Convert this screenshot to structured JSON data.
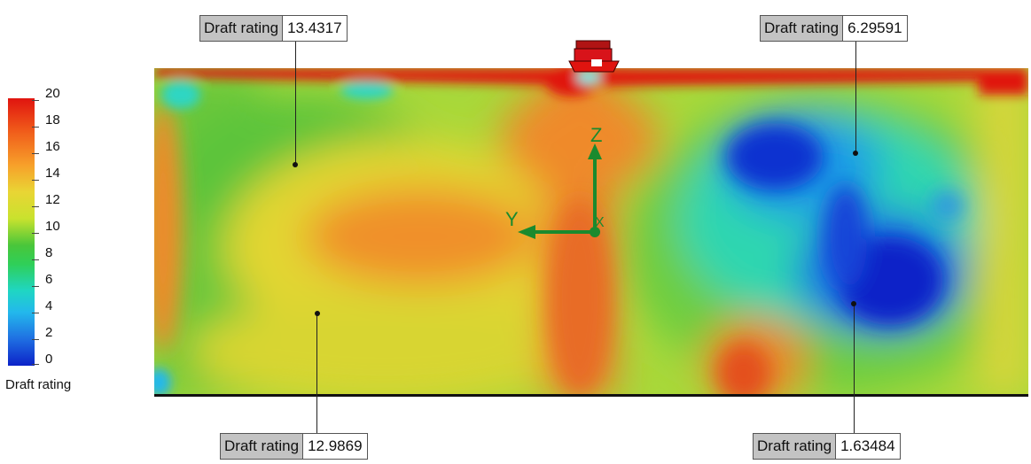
{
  "legend": {
    "title": "Draft rating",
    "ticks": [
      "20",
      "18",
      "16",
      "14",
      "12",
      "10",
      "8",
      "6",
      "4",
      "2",
      "0"
    ],
    "range": [
      0,
      20
    ]
  },
  "axes": {
    "z_label": "Z",
    "y_label": "Y",
    "x_label": "X"
  },
  "callouts": [
    {
      "label": "Draft rating",
      "value": "13.4317"
    },
    {
      "label": "Draft rating",
      "value": "6.29591"
    },
    {
      "label": "Draft rating",
      "value": "12.9869"
    },
    {
      "label": "Draft rating",
      "value": "1.63484"
    }
  ],
  "colors": {
    "high": "#e0140f",
    "mid": "#e9d534",
    "low": "#0c22c8",
    "triad": "#1a8a2e"
  }
}
